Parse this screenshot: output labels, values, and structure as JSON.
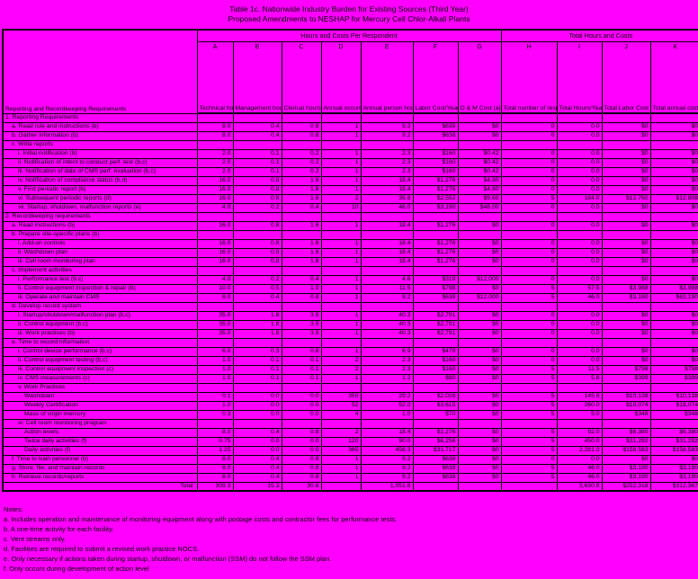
{
  "colors": {
    "background": "#FF00FF",
    "text": "#000000",
    "border": "#000000"
  },
  "title": {
    "line1": "Table 1c. Nationwide Industry Burden for Existing Sources (Third Year)",
    "line2": "Proposed Amendments to NESHAP for Mercury Cell Chlor-Alkali Plants"
  },
  "table": {
    "row_header_label": "Reporting and Recordkeeping Requirements",
    "groups": [
      {
        "label": "Hours and Costs Per Respondent",
        "span": 7
      },
      {
        "label": "Total Hours and Costs",
        "span": 4
      }
    ],
    "columns": [
      {
        "letter": "A",
        "desc": "Technical hours per occurrence @ $69.52"
      },
      {
        "letter": "B",
        "desc": "Management hours per occurrence (Ax0.05) @ $122.52"
      },
      {
        "letter": "C",
        "desc": "Clerical hours per occurrence (Ax0.1) @ $41.09"
      },
      {
        "letter": "D",
        "desc": "Annual occurrences"
      },
      {
        "letter": "E",
        "desc": "Annual person hours"
      },
      {
        "letter": "F",
        "desc": "Labor Cost/Year"
      },
      {
        "letter": "G",
        "desc": "O & M Cost (a)"
      },
      {
        "letter": "H",
        "desc": "Total number of respondents"
      },
      {
        "letter": "I",
        "desc": "Total Hours/Year (E x H)"
      },
      {
        "letter": "J",
        "desc": "Total Labor Cost (F x H)"
      },
      {
        "letter": "K",
        "desc": "Total annual cost (F+G) x H"
      }
    ],
    "rows": [
      {
        "label": "1. Reporting Requirements",
        "indent": 0,
        "cells": [
          "",
          "",
          "",
          "",
          "",
          "",
          "",
          "",
          "",
          "",
          ""
        ]
      },
      {
        "label": "a. Read rule and instructions (b)",
        "indent": 1,
        "cells": [
          "8.0",
          "0.4",
          "0.8",
          "1",
          "9.2",
          "$638",
          "$0",
          "0",
          "0.0",
          "$0",
          "$0"
        ]
      },
      {
        "label": "b. Gather information (b)",
        "indent": 1,
        "cells": [
          "8.0",
          "0.4",
          "0.8",
          "1",
          "9.2",
          "$638",
          "$0",
          "0",
          "0.0",
          "$0",
          "$0"
        ]
      },
      {
        "label": "c. Write reports",
        "indent": 1,
        "cells": [
          "",
          "",
          "",
          "",
          "",
          "",
          "",
          "",
          "",
          "",
          ""
        ]
      },
      {
        "label": "i. Initial notification (b)",
        "indent": 2,
        "cells": [
          "2.0",
          "0.1",
          "0.2",
          "1",
          "2.3",
          "$160",
          "$0.42",
          "0",
          "0.0",
          "$0",
          "$0"
        ]
      },
      {
        "label": "ii. Notification of intent to conduct perf. test (b,c)",
        "indent": 2,
        "cells": [
          "2.0",
          "0.1",
          "0.2",
          "1",
          "2.3",
          "$160",
          "$0.42",
          "0",
          "0.0",
          "$0",
          "$0"
        ]
      },
      {
        "label": "iii. Notification of date of CMS perf. evaluation (b,c)",
        "indent": 2,
        "cells": [
          "2.0",
          "0.1",
          "0.2",
          "1",
          "2.3",
          "$160",
          "$0.42",
          "0",
          "0.0",
          "$0",
          "$0"
        ]
      },
      {
        "label": "iv. Notification of compliance status (b,d)",
        "indent": 2,
        "cells": [
          "16.0",
          "0.8",
          "1.6",
          "1",
          "18.4",
          "$1,276",
          "$4.80",
          "0",
          "0.0",
          "$0",
          "$0"
        ]
      },
      {
        "label": "v. First periodic report (b)",
        "indent": 2,
        "cells": [
          "16.0",
          "0.8",
          "1.6",
          "1",
          "18.4",
          "$1,276",
          "$4.80",
          "0",
          "0.0",
          "$0",
          "$0"
        ]
      },
      {
        "label": "vi. Subsequent periodic reports (d)",
        "indent": 2,
        "cells": [
          "16.0",
          "0.8",
          "1.6",
          "2",
          "36.8",
          "$2,552",
          "$9.60",
          "5",
          "184.0",
          "$12,760",
          "$12,808"
        ]
      },
      {
        "label": "vii. Startup, shutdown, malfunction reports (e)",
        "indent": 2,
        "cells": [
          "4.0",
          "0.2",
          "0.4",
          "10",
          "46.0",
          "$3,190",
          "$48.00",
          "0",
          "0.0",
          "$0",
          "$0"
        ]
      },
      {
        "label": "2. Recordkeeping requirements",
        "indent": 0,
        "cells": [
          "",
          "",
          "",
          "",
          "",
          "",
          "",
          "",
          "",
          "",
          ""
        ]
      },
      {
        "label": "a. Read instructions (b)",
        "indent": 1,
        "cells": [
          "16.0",
          "0.8",
          "1.6",
          "1",
          "18.4",
          "$1,276",
          "$0",
          "0",
          "0.0",
          "$0",
          "$0"
        ]
      },
      {
        "label": "b. Prepare site-specific plans (b)",
        "indent": 1,
        "cells": [
          "",
          "",
          "",
          "",
          "",
          "",
          "",
          "",
          "",
          "",
          ""
        ]
      },
      {
        "label": "i. Add-on controls",
        "indent": 2,
        "cells": [
          "16.0",
          "0.8",
          "1.6",
          "1",
          "18.4",
          "$1,276",
          "$0",
          "0",
          "0.0",
          "$0",
          "$0"
        ]
      },
      {
        "label": "ii. Washdown plan",
        "indent": 2,
        "cells": [
          "16.0",
          "0.8",
          "1.6",
          "1",
          "18.4",
          "$1,276",
          "$0",
          "0",
          "0.0",
          "$0",
          "$0"
        ]
      },
      {
        "label": "iii. Cell room monitoring plan",
        "indent": 2,
        "cells": [
          "16.0",
          "0.8",
          "1.6",
          "1",
          "18.4",
          "$1,276",
          "$0",
          "0",
          "0.0",
          "$0",
          "$0"
        ]
      },
      {
        "label": "c. Implement activities",
        "indent": 1,
        "cells": [
          "",
          "",
          "",
          "",
          "",
          "",
          "",
          "",
          "",
          "",
          ""
        ]
      },
      {
        "label": "i. Performance test (b,c)",
        "indent": 2,
        "cells": [
          "4.0",
          "0.2",
          "0.4",
          "1",
          "4.6",
          "$319",
          "$12,000",
          "0",
          "0.0",
          "$0",
          "$0"
        ]
      },
      {
        "label": "ii. Control equipment inspection & repair (b)",
        "indent": 2,
        "cells": [
          "10.0",
          "0.5",
          "1.0",
          "1",
          "11.5",
          "$798",
          "$0",
          "5",
          "57.5",
          "$3,988",
          "$3,988"
        ]
      },
      {
        "label": "iii. Operate and maintain CMS",
        "indent": 2,
        "cells": [
          "8.0",
          "0.4",
          "0.8",
          "1",
          "9.2",
          "$638",
          "$12,000",
          "5",
          "46.0",
          "$3,190",
          "$63,190"
        ]
      },
      {
        "label": "d. Develop record system",
        "indent": 1,
        "cells": [
          "",
          "",
          "",
          "",
          "",
          "",
          "",
          "",
          "",
          "",
          ""
        ]
      },
      {
        "label": "i. Startup/shutdown/malfunction plan (b,c)",
        "indent": 2,
        "cells": [
          "35.0",
          "1.8",
          "3.5",
          "1",
          "40.3",
          "$2,791",
          "$0",
          "0",
          "0.0",
          "$0",
          "$0"
        ]
      },
      {
        "label": "ii. Control equipment (b,c)",
        "indent": 2,
        "cells": [
          "35.0",
          "1.8",
          "3.5",
          "1",
          "40.3",
          "$2,791",
          "$0",
          "0",
          "0.0",
          "$0",
          "$0"
        ]
      },
      {
        "label": "iii. Work practices (b)",
        "indent": 2,
        "cells": [
          "35.0",
          "1.8",
          "3.5",
          "1",
          "40.3",
          "$2,791",
          "$0",
          "0",
          "0.0",
          "$0",
          "$0"
        ]
      },
      {
        "label": "e. Time to record information",
        "indent": 1,
        "cells": [
          "",
          "",
          "",
          "",
          "",
          "",
          "",
          "",
          "",
          "",
          ""
        ]
      },
      {
        "label": "i. Control device performance (b,c)",
        "indent": 2,
        "cells": [
          "6.0",
          "0.3",
          "0.6",
          "1",
          "6.9",
          "$479",
          "$0",
          "0",
          "0.0",
          "$0",
          "$0"
        ]
      },
      {
        "label": "ii. Control equipment testing (b,c)",
        "indent": 2,
        "cells": [
          "1.0",
          "0.1",
          "0.1",
          "2",
          "2.3",
          "$160",
          "$0",
          "0",
          "0.0",
          "$0",
          "$0"
        ]
      },
      {
        "label": "iii. Control equipment inspection (c)",
        "indent": 2,
        "cells": [
          "1.0",
          "0.1",
          "0.1",
          "2",
          "2.3",
          "$160",
          "$0",
          "5",
          "11.5",
          "$798",
          "$798"
        ]
      },
      {
        "label": "iv. CMS measurements (c)",
        "indent": 2,
        "cells": [
          "1.0",
          "0.1",
          "0.1",
          "1",
          "1.2",
          "$80",
          "$0",
          "5",
          "5.8",
          "$399",
          "$399"
        ]
      },
      {
        "label": "v. Work Practices",
        "indent": 2,
        "cells": [
          "",
          "",
          "",
          "",
          "",
          "",
          "",
          "",
          "",
          "",
          ""
        ]
      },
      {
        "label": "Washdown",
        "indent": 3,
        "cells": [
          "0.1",
          "0.0",
          "0.0",
          "350",
          "29.2",
          "$2,028",
          "$0",
          "5",
          "145.8",
          "$10,138",
          "$10,138"
        ]
      },
      {
        "label": "Weekly Certification",
        "indent": 3,
        "cells": [
          "1.0",
          "0.0",
          "0.0",
          "52",
          "52.0",
          "$3,615",
          "$0",
          "5",
          "260.0",
          "$18,074",
          "$18,074"
        ]
      },
      {
        "label": "Mass of virgin mercury",
        "indent": 3,
        "cells": [
          "0.3",
          "0.0",
          "0.0",
          "4",
          "1.0",
          "$70",
          "$0",
          "5",
          "5.0",
          "$348",
          "$348"
        ]
      },
      {
        "label": "vi. Cell room monitoring program",
        "indent": 2,
        "cells": [
          "",
          "",
          "",
          "",
          "",
          "",
          "",
          "",
          "",
          "",
          ""
        ]
      },
      {
        "label": "Action levels",
        "indent": 3,
        "cells": [
          "8.0",
          "0.4",
          "0.8",
          "2",
          "18.4",
          "$1,276",
          "$0",
          "5",
          "92.0",
          "$6,380",
          "$6,380"
        ]
      },
      {
        "label": "Twice daily activities (f)",
        "indent": 3,
        "cells": [
          "0.75",
          "0.0",
          "0.0",
          "120",
          "90.0",
          "$6,256",
          "$0",
          "5",
          "450.0",
          "$31,282",
          "$31,282"
        ]
      },
      {
        "label": "Daily activities (f)",
        "indent": 3,
        "cells": [
          "1.25",
          "0.0",
          "0.0",
          "365",
          "456.3",
          "$31,717",
          "$0",
          "5",
          "2,281.3",
          "$158,583",
          "$158,583"
        ]
      },
      {
        "label": "f. Time to train personnel (b)",
        "indent": 1,
        "cells": [
          "8.0",
          "0.4",
          "0.8",
          "1",
          "9.2",
          "$638",
          "$0",
          "0",
          "0.0",
          "$0",
          "$0"
        ]
      },
      {
        "label": "g. Store, file, and maintain records",
        "indent": 1,
        "cells": [
          "8.0",
          "0.4",
          "0.8",
          "1",
          "9.2",
          "$638",
          "$0",
          "5",
          "46.0",
          "$3,190",
          "$3,190"
        ]
      },
      {
        "label": "h. Retrieve records/reports",
        "indent": 1,
        "cells": [
          "8.0",
          "0.4",
          "0.8",
          "1",
          "9.2",
          "$638",
          "$0",
          "5",
          "46.0",
          "$3,190",
          "$3,190"
        ]
      },
      {
        "label": "Total",
        "indent": 0,
        "total": true,
        "cells": [
          "309.3",
          "15.3",
          "30.6",
          "",
          "1,051.6",
          "",
          "",
          "",
          "3,630.8",
          "$252,318",
          "$312,367"
        ]
      }
    ]
  },
  "notes": {
    "heading": "Notes:",
    "items": [
      "a. Includes operation and maintenance of monitoring equipment along with postage costs and contractor fees for performance tests.",
      "b. A one-time activity for each facility.",
      "c. Vent streams only.",
      "d. Facilities are required to submit a revised work practice NOCS.",
      "e. Only necessary if actions taken during startup, shutdown, or malfunction (SSM) do not follow the SSM plan.",
      "f. Only occurs during development of action level"
    ]
  }
}
